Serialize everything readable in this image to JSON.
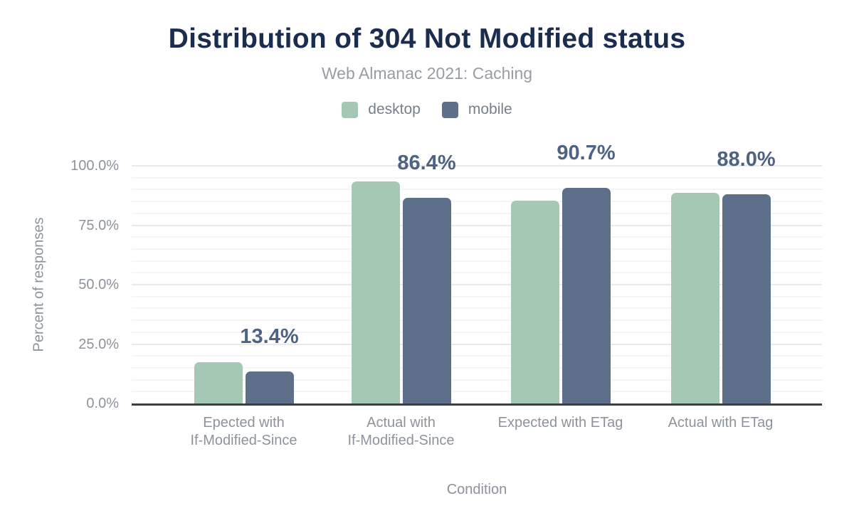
{
  "chart_data": {
    "type": "bar",
    "title": "Distribution of 304 Not Modified status",
    "subtitle": "Web Almanac 2021: Caching",
    "xlabel": "Condition",
    "ylabel": "Percent of responses",
    "ylim": [
      0,
      100
    ],
    "grid": "horizontal, minor every 5%, major every 25%",
    "legend_position": "top",
    "categories": [
      [
        "Epected with",
        "If-Modified-Since"
      ],
      [
        "Actual with",
        "If-Modified-Since"
      ],
      [
        "Expected with ETag"
      ],
      [
        "Actual with ETag"
      ]
    ],
    "series": [
      {
        "name": "desktop",
        "color": "#a5c8b5",
        "values": [
          17.5,
          93.4,
          85.4,
          88.6
        ]
      },
      {
        "name": "mobile",
        "color": "#5e7089",
        "values": [
          13.4,
          86.4,
          90.7,
          88.0
        ]
      }
    ],
    "value_labels": {
      "series": "mobile",
      "texts": [
        "13.4%",
        "86.4%",
        "90.7%",
        "88.0%"
      ]
    },
    "yticks": [
      {
        "value": 0,
        "label": "0.0%"
      },
      {
        "value": 25,
        "label": "25.0%"
      },
      {
        "value": 50,
        "label": "50.0%"
      },
      {
        "value": 75,
        "label": "75.0%"
      },
      {
        "value": 100,
        "label": "100.0%"
      }
    ]
  },
  "colors": {
    "background": "#ffffff",
    "title": "#1b2d4f",
    "subtitle": "#989ca3",
    "legend_text": "#767f8b",
    "axis_text": "#8d939c",
    "value_label": "#4e6384",
    "axis_line": "#3b3e44",
    "grid_major": "#e9e9e9",
    "grid_minor": "#f5f5f5"
  }
}
